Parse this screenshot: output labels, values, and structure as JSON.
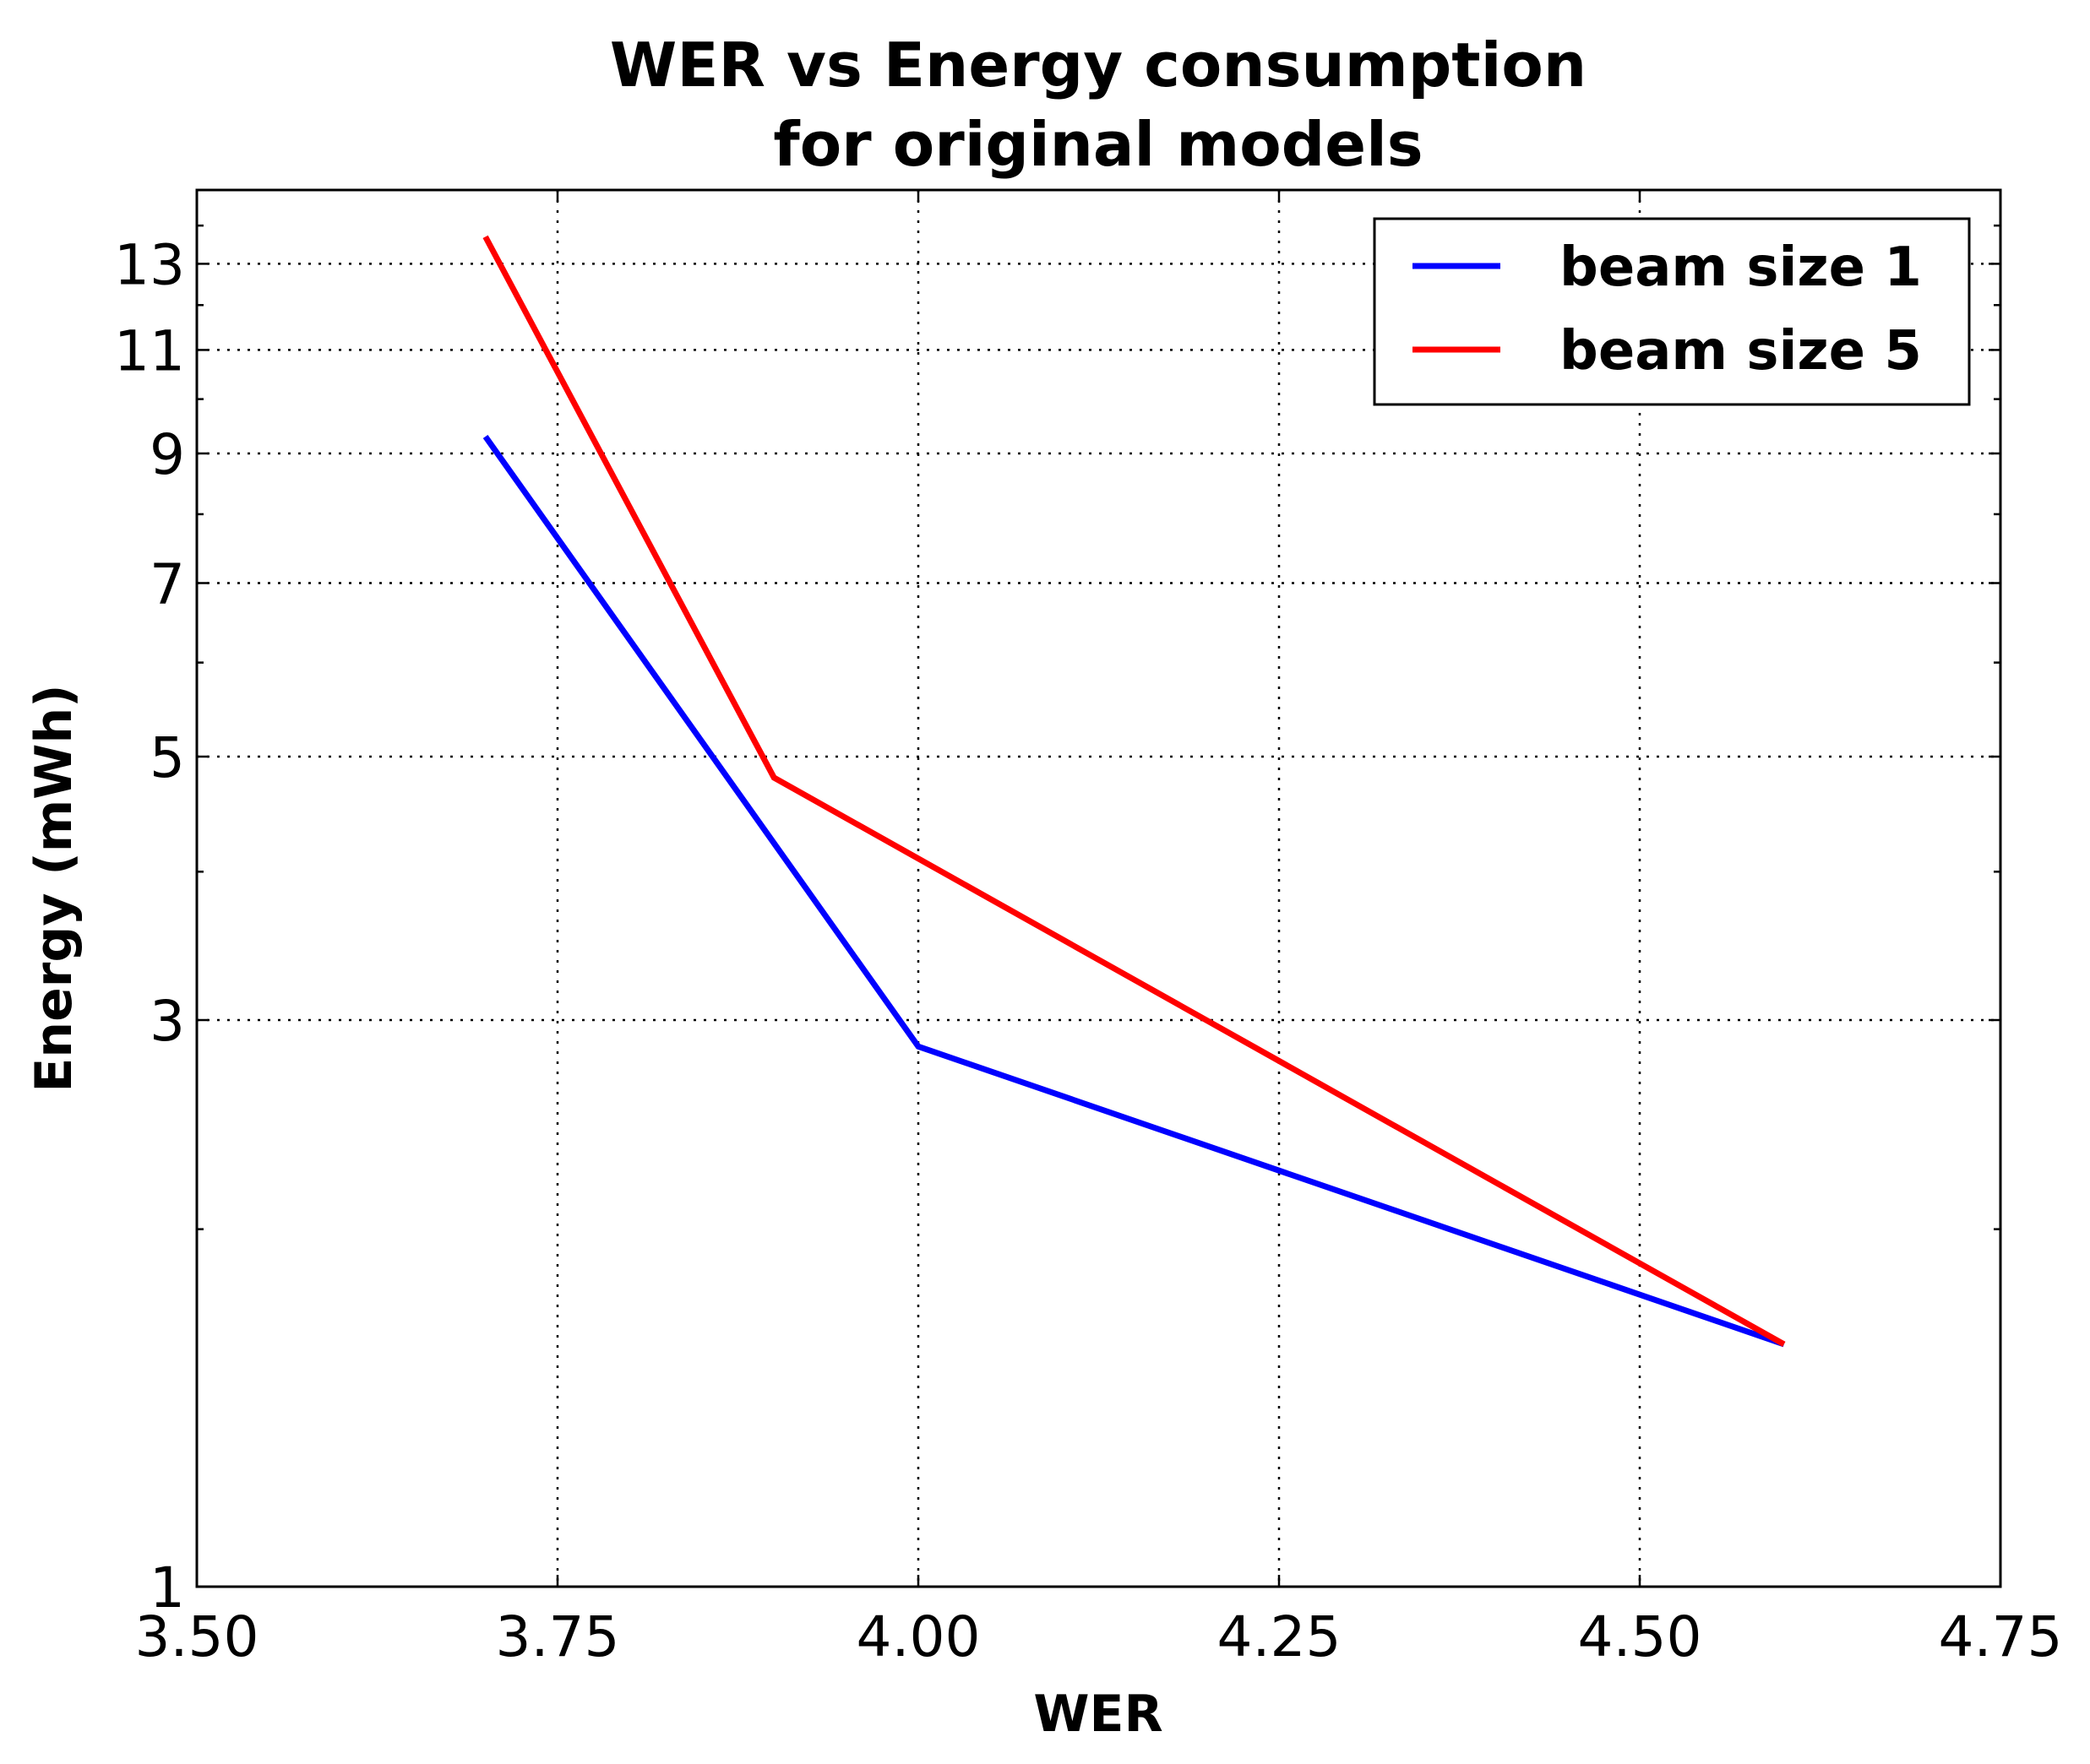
{
  "chart_data": {
    "type": "line",
    "title": [
      "WER vs Energy consumption",
      "for original models"
    ],
    "xlabel": "WER",
    "ylabel": "Energy (mWh)",
    "xlim": [
      3.5,
      4.75
    ],
    "ylim": [
      1,
      15
    ],
    "yscale": "log",
    "grid": true,
    "legend_position": "top-right",
    "x_ticks": [
      {
        "value": 3.5,
        "label": "3.50"
      },
      {
        "value": 3.75,
        "label": "3.75"
      },
      {
        "value": 4.0,
        "label": "4.00"
      },
      {
        "value": 4.25,
        "label": "4.25"
      },
      {
        "value": 4.5,
        "label": "4.50"
      },
      {
        "value": 4.75,
        "label": "4.75"
      }
    ],
    "y_ticks": [
      {
        "value": 1,
        "label": "1"
      },
      {
        "value": 3,
        "label": "3"
      },
      {
        "value": 5,
        "label": "5"
      },
      {
        "value": 7,
        "label": "7"
      },
      {
        "value": 9,
        "label": "9"
      },
      {
        "value": 11,
        "label": "11"
      },
      {
        "value": 13,
        "label": "13"
      }
    ],
    "series": [
      {
        "name": "beam size 1",
        "color": "#0000ff",
        "x": [
          3.7,
          4.0,
          4.6
        ],
        "values": [
          9.3,
          2.85,
          1.6
        ]
      },
      {
        "name": "beam size 5",
        "color": "#ff0000",
        "x": [
          3.7,
          3.9,
          4.6
        ],
        "values": [
          13.7,
          4.8,
          1.6
        ]
      }
    ]
  }
}
